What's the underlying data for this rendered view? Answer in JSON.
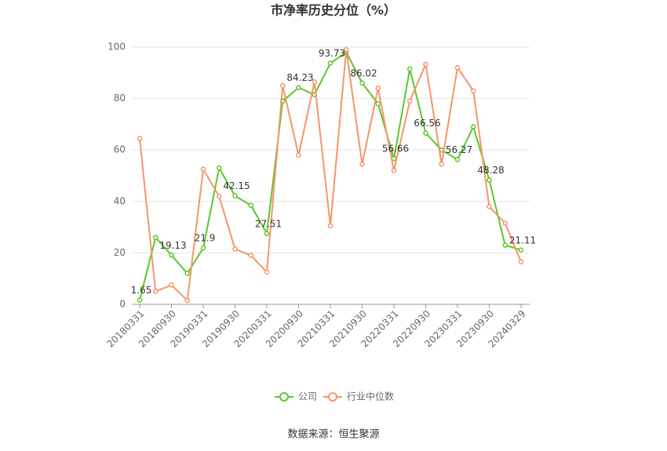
{
  "chart_data": {
    "type": "line",
    "title": "市净率历史分位（%）",
    "categories": [
      "20180331",
      null,
      "20180930",
      null,
      "20190331",
      null,
      "20190930",
      null,
      "20200331",
      null,
      "20200930",
      null,
      "20210331",
      null,
      "20210930",
      null,
      "20220331",
      null,
      "20220930",
      null,
      "20230331",
      null,
      "20230930",
      null,
      "20240329"
    ],
    "series": [
      {
        "name": "公司",
        "color": "#5cc72a",
        "values": [
          1.65,
          26,
          19.13,
          12,
          21.9,
          53,
          42.15,
          38.5,
          27.51,
          79,
          84.23,
          81.5,
          93.73,
          98,
          86.02,
          78,
          56.66,
          91.5,
          66.56,
          60,
          56.27,
          69,
          48.28,
          23,
          21.11
        ]
      },
      {
        "name": "行业中位数",
        "color": "#f4956b",
        "values": [
          64.5,
          5,
          7.5,
          1.5,
          52.5,
          42,
          21.5,
          19,
          12.5,
          85,
          58,
          86.5,
          30.5,
          99,
          54.5,
          84,
          52,
          79,
          93.3,
          54.5,
          92,
          83,
          38,
          31.5,
          16.5
        ]
      }
    ],
    "ylim": [
      0,
      100
    ],
    "yticks": [
      0,
      20,
      40,
      60,
      80,
      100
    ],
    "grid": true,
    "legend": "bottom",
    "source": "数据来源：恒生聚源"
  }
}
